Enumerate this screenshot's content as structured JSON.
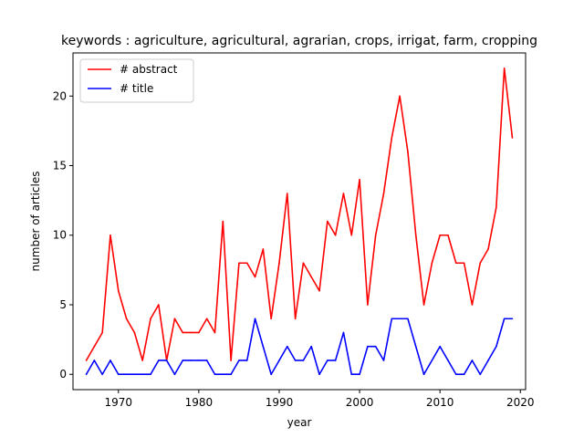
{
  "chart_data": {
    "type": "line",
    "title": "keywords : agriculture, agricultural, agrarian, crops, irrigat, farm, cropping",
    "xlabel": "year",
    "ylabel": "number of articles",
    "xlim": [
      1964.35,
      2020.65
    ],
    "ylim": [
      -1.1,
      23.1
    ],
    "xticks": [
      1970,
      1980,
      1990,
      2000,
      2010,
      2020
    ],
    "yticks": [
      0,
      5,
      10,
      15,
      20
    ],
    "grid": false,
    "legend_position": "upper-left",
    "x": [
      1966,
      1967,
      1968,
      1969,
      1970,
      1971,
      1972,
      1973,
      1974,
      1975,
      1976,
      1977,
      1978,
      1979,
      1980,
      1981,
      1982,
      1983,
      1984,
      1985,
      1986,
      1987,
      1988,
      1989,
      1990,
      1991,
      1992,
      1993,
      1994,
      1995,
      1996,
      1997,
      1998,
      1999,
      2000,
      2001,
      2002,
      2003,
      2004,
      2005,
      2006,
      2007,
      2008,
      2009,
      2010,
      2011,
      2012,
      2013,
      2014,
      2015,
      2016,
      2017,
      2018,
      2019
    ],
    "series": [
      {
        "name": "# abstract",
        "color": "#ff0000",
        "values": [
          1,
          2,
          3,
          10,
          6,
          4,
          3,
          1,
          4,
          5,
          1,
          4,
          3,
          3,
          3,
          4,
          3,
          11,
          1,
          8,
          8,
          7,
          9,
          4,
          8,
          13,
          4,
          8,
          7,
          6,
          11,
          10,
          13,
          10,
          14,
          5,
          10,
          13,
          17,
          20,
          16,
          10,
          5,
          8,
          10,
          10,
          8,
          8,
          5,
          8,
          9,
          12,
          22,
          17
        ]
      },
      {
        "name": "# title",
        "color": "#0000ff",
        "values": [
          0,
          1,
          0,
          1,
          0,
          0,
          0,
          0,
          0,
          1,
          1,
          0,
          1,
          1,
          1,
          1,
          0,
          0,
          0,
          1,
          1,
          4,
          2,
          0,
          1,
          2,
          1,
          1,
          2,
          0,
          1,
          1,
          3,
          0,
          0,
          2,
          2,
          1,
          4,
          4,
          4,
          2,
          0,
          1,
          2,
          1,
          0,
          0,
          1,
          0,
          1,
          2,
          4,
          4
        ]
      }
    ]
  }
}
